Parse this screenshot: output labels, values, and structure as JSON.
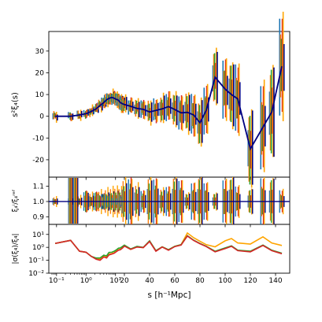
{
  "figure": {
    "xlabel": "s [h⁻¹Mpc]",
    "x_ticks": [
      {
        "value": 0.1,
        "label": "10⁻¹"
      },
      {
        "value": 1,
        "label": "10⁰"
      },
      {
        "value": 10,
        "label": "10¹"
      },
      {
        "value": 20,
        "label": "20"
      },
      {
        "value": 40,
        "label": "40"
      },
      {
        "value": 60,
        "label": "60"
      },
      {
        "value": 80,
        "label": "80"
      },
      {
        "value": 100,
        "label": "100"
      },
      {
        "value": 120,
        "label": "120"
      },
      {
        "value": 140,
        "label": "140"
      }
    ]
  },
  "chart_data": [
    {
      "type": "line",
      "panel": "top",
      "ylabel": "s²ξ₄(s)",
      "ylim": [
        -28,
        39
      ],
      "yticks": [
        -20,
        -10,
        0,
        10,
        20,
        30
      ],
      "x_scale": "log below 20, linear above",
      "x": [
        0.09,
        0.3,
        0.6,
        1.0,
        1.5,
        2.2,
        3,
        4,
        5,
        6,
        7.5,
        9,
        10.5,
        12.5,
        14.5,
        17,
        20,
        25,
        30,
        35,
        40,
        45,
        50,
        55,
        60,
        65,
        70,
        75,
        80,
        85,
        92,
        100,
        105,
        110,
        120,
        130,
        137,
        145
      ],
      "series": [
        {
          "line_color": "#000080",
          "y": [
            0.0,
            0.0,
            0.6,
            1.2,
            2.2,
            3.4,
            5.0,
            6.3,
            7.6,
            8.2,
            8.7,
            8.3,
            7.8,
            7.4,
            6.3,
            5.8,
            5.4,
            4.6,
            3.6,
            3.2,
            2.0,
            2.7,
            3.4,
            4.5,
            3.1,
            1.6,
            1.8,
            0.6,
            -3.0,
            2.8,
            18.0,
            12.5,
            10.0,
            8.0,
            -15.0,
            -5.0,
            2.0,
            23.0
          ]
        }
      ],
      "errorbar_colors": [
        "#1f77b4",
        "#ff7f0e",
        "#2ca02c",
        "#d62728",
        "#ffa500",
        "#000080"
      ],
      "errorbar_color_names": [
        "blue",
        "orange",
        "green",
        "red",
        "yellow-orange",
        "navy"
      ]
    },
    {
      "type": "line",
      "panel": "middle",
      "ylabel": "ξ₄ⁱ/ξ₄ʳᵉᶠ",
      "ylim": [
        0.85,
        1.16
      ],
      "yticks": [
        0.9,
        1.0,
        1.1
      ],
      "ytick_labels": [
        "0.9",
        "1.0",
        "1.1"
      ],
      "reference_level": 1.0
    },
    {
      "type": "line",
      "panel": "bottom",
      "ylabel": "|σ(ξ₄)/ξ₄|",
      "y_scale": "log",
      "ylim": [
        0.01,
        60
      ],
      "yticks": [
        0.01,
        0.1,
        1,
        10
      ],
      "ytick_labels": [
        "10⁻²",
        "10⁻¹",
        "10⁰",
        "10¹"
      ],
      "x": [
        0.09,
        0.3,
        0.6,
        1.0,
        1.5,
        2.2,
        3,
        4,
        5,
        6,
        7.5,
        9,
        10.5,
        12.5,
        14.5,
        17,
        20,
        25,
        30,
        35,
        40,
        45,
        50,
        55,
        60,
        65,
        70,
        75,
        80,
        85,
        92,
        100,
        105,
        110,
        120,
        130,
        137,
        145
      ],
      "series": [
        {
          "color": "#ffa500",
          "y": [
            2.0,
            3.5,
            0.5,
            0.42,
            0.2,
            0.13,
            0.12,
            0.2,
            0.18,
            0.3,
            0.33,
            0.38,
            0.5,
            0.65,
            0.7,
            0.95,
            1.3,
            0.7,
            1.1,
            0.95,
            3.0,
            0.55,
            1.1,
            0.65,
            1.2,
            1.6,
            13.0,
            5.5,
            3.0,
            1.6,
            1.1,
            3.2,
            4.8,
            2.2,
            1.8,
            6.5,
            2.2,
            1.4
          ]
        },
        {
          "color": "#2ca02c",
          "y": [
            2.0,
            3.5,
            0.5,
            0.42,
            0.2,
            0.15,
            0.15,
            0.25,
            0.22,
            0.4,
            0.42,
            0.5,
            0.62,
            0.85,
            0.9,
            1.15,
            1.5,
            0.75,
            1.2,
            1.0,
            3.2,
            0.55,
            1.1,
            0.65,
            1.2,
            1.6,
            8.0,
            3.6,
            2.0,
            1.2,
            0.5,
            0.9,
            1.3,
            0.6,
            0.5,
            1.5,
            0.6,
            0.35
          ]
        },
        {
          "color": "#d62728",
          "y": [
            2.0,
            3.5,
            0.5,
            0.42,
            0.2,
            0.12,
            0.1,
            0.18,
            0.15,
            0.26,
            0.3,
            0.35,
            0.45,
            0.6,
            0.65,
            0.85,
            1.25,
            0.7,
            1.05,
            0.95,
            2.8,
            0.5,
            1.05,
            0.6,
            1.15,
            1.5,
            7.5,
            3.4,
            1.9,
            1.15,
            0.45,
            0.8,
            1.2,
            0.55,
            0.45,
            1.4,
            0.55,
            0.32
          ]
        }
      ]
    }
  ]
}
